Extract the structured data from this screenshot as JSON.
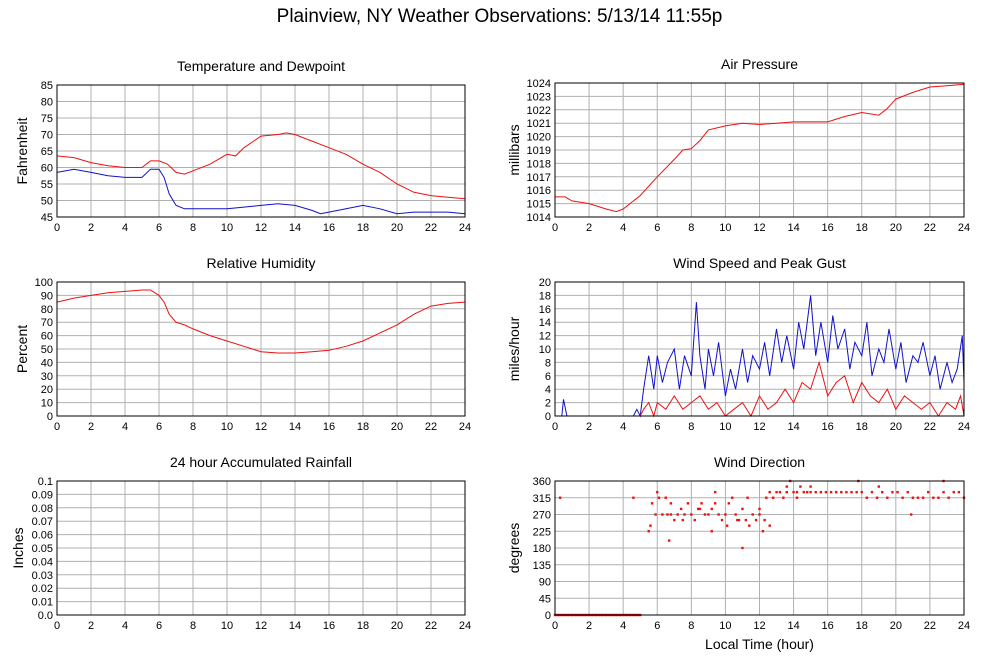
{
  "page": {
    "title": "Plainview, NY Weather Observations: 5/13/14 11:55p"
  },
  "colors": {
    "red": "#ee1111",
    "blue": "#1111cc",
    "grid": "#b0b0b0",
    "frame": "#000000"
  },
  "chart_data": [
    {
      "id": "temp",
      "type": "line",
      "title": "Temperature and Dewpoint",
      "ylabel": "Fahrenheit",
      "xlabel": "",
      "xlim": [
        0,
        24
      ],
      "ylim": [
        45,
        85
      ],
      "xticks": [
        0,
        2,
        4,
        6,
        8,
        10,
        12,
        14,
        16,
        18,
        20,
        22,
        24
      ],
      "yticks": [
        45,
        50,
        55,
        60,
        65,
        70,
        75,
        80,
        85
      ],
      "grid": true,
      "series": [
        {
          "color": "red",
          "x": [
            0,
            1,
            2,
            3,
            4,
            5,
            5.5,
            6,
            6.5,
            7,
            7.5,
            8,
            9,
            10,
            10.5,
            11,
            12,
            13,
            13.5,
            14,
            15,
            16,
            17,
            18,
            19,
            20,
            21,
            22,
            23,
            24
          ],
          "y": [
            63.5,
            63,
            61.5,
            60.5,
            60,
            60,
            62,
            62,
            61,
            58.5,
            58,
            59,
            61,
            64,
            63.5,
            66,
            69.5,
            70,
            70.5,
            70,
            68,
            66,
            64,
            61,
            58.5,
            55,
            52.5,
            51.5,
            51,
            50.5
          ]
        },
        {
          "color": "blue",
          "x": [
            0,
            1,
            2,
            3,
            4,
            5,
            5.5,
            6,
            6.3,
            6.6,
            7,
            7.5,
            8,
            9,
            10,
            11,
            12,
            13,
            14,
            15,
            15.5,
            16,
            17,
            18,
            19,
            20,
            21,
            22,
            23,
            24
          ],
          "y": [
            58.5,
            59.5,
            58.5,
            57.5,
            57,
            57,
            59.5,
            59.5,
            57,
            52,
            48.5,
            47.5,
            47.5,
            47.5,
            47.5,
            48,
            48.5,
            49,
            48.5,
            47,
            46,
            46.5,
            47.5,
            48.5,
            47.5,
            46,
            46.5,
            46.5,
            46.5,
            46
          ]
        }
      ]
    },
    {
      "id": "pressure",
      "type": "line",
      "title": "Air Pressure",
      "ylabel": "millibars",
      "xlabel": "",
      "xlim": [
        0,
        24
      ],
      "ylim": [
        1014,
        1024
      ],
      "xticks": [
        0,
        2,
        4,
        6,
        8,
        10,
        12,
        14,
        16,
        18,
        20,
        22,
        24
      ],
      "yticks": [
        1014,
        1015,
        1016,
        1017,
        1018,
        1019,
        1020,
        1021,
        1022,
        1023,
        1024
      ],
      "grid": true,
      "series": [
        {
          "color": "red",
          "x": [
            0,
            0.6,
            1,
            2,
            3,
            3.6,
            4,
            5,
            6,
            7,
            7.5,
            8,
            8.5,
            9,
            10,
            11,
            12,
            13,
            14,
            15,
            16,
            17,
            18,
            19,
            19.5,
            20,
            21,
            22,
            23,
            24
          ],
          "y": [
            1015.5,
            1015.5,
            1015.2,
            1015,
            1014.6,
            1014.4,
            1014.6,
            1015.6,
            1017,
            1018.3,
            1019,
            1019.1,
            1019.7,
            1020.5,
            1020.8,
            1021,
            1020.9,
            1021,
            1021.1,
            1021.1,
            1021.1,
            1021.5,
            1021.8,
            1021.6,
            1022.1,
            1022.8,
            1023.3,
            1023.7,
            1023.8,
            1023.9
          ]
        }
      ]
    },
    {
      "id": "humidity",
      "type": "line",
      "title": "Relative Humidity",
      "ylabel": "Percent",
      "xlabel": "",
      "xlim": [
        0,
        24
      ],
      "ylim": [
        0,
        100
      ],
      "xticks": [
        0,
        2,
        4,
        6,
        8,
        10,
        12,
        14,
        16,
        18,
        20,
        22,
        24
      ],
      "yticks": [
        0,
        10,
        20,
        30,
        40,
        50,
        60,
        70,
        80,
        90,
        100
      ],
      "grid": true,
      "series": [
        {
          "color": "red",
          "x": [
            0,
            1,
            2,
            3,
            4,
            5,
            5.5,
            6,
            6.3,
            6.6,
            7,
            7.5,
            8,
            9,
            10,
            11,
            12,
            13,
            14,
            15,
            16,
            17,
            18,
            19,
            20,
            21,
            22,
            23,
            24
          ],
          "y": [
            85,
            88,
            90,
            92,
            93,
            94,
            94,
            90,
            85,
            76,
            70,
            68,
            65,
            60,
            56,
            52,
            48,
            47,
            47,
            48,
            49,
            52,
            56,
            62,
            68,
            76,
            82,
            84,
            85
          ]
        }
      ]
    },
    {
      "id": "wind",
      "type": "line",
      "title": "Wind Speed and Peak Gust",
      "ylabel": "miles/hour",
      "xlabel": "",
      "xlim": [
        0,
        24
      ],
      "ylim": [
        0,
        20
      ],
      "xticks": [
        0,
        2,
        4,
        6,
        8,
        10,
        12,
        14,
        16,
        18,
        20,
        22,
        24
      ],
      "yticks": [
        0,
        2,
        4,
        6,
        8,
        10,
        12,
        14,
        16,
        18,
        20
      ],
      "grid": true,
      "series": [
        {
          "color": "blue",
          "x": [
            0,
            0.4,
            0.5,
            0.7,
            1,
            2,
            3,
            4,
            4.6,
            4.8,
            5,
            5.2,
            5.5,
            5.8,
            6,
            6.3,
            6.6,
            7,
            7.3,
            7.6,
            8,
            8.3,
            8.5,
            8.8,
            9,
            9.3,
            9.6,
            10,
            10.3,
            10.6,
            11,
            11.3,
            11.6,
            12,
            12.3,
            12.6,
            13,
            13.3,
            13.6,
            14,
            14.3,
            14.6,
            15,
            15.3,
            15.6,
            16,
            16.3,
            16.6,
            17,
            17.3,
            17.6,
            18,
            18.3,
            18.6,
            19,
            19.3,
            19.6,
            20,
            20.3,
            20.6,
            21,
            21.3,
            21.6,
            22,
            22.3,
            22.6,
            23,
            23.3,
            23.6,
            23.9,
            24
          ],
          "y": [
            0,
            0,
            2.5,
            0,
            0,
            0,
            0,
            0,
            0,
            1,
            0,
            4,
            9,
            4,
            9,
            5,
            8,
            10,
            4,
            9,
            6,
            17,
            9,
            4,
            10,
            6,
            11,
            3,
            7,
            4,
            10,
            5,
            9,
            7,
            11,
            6,
            13,
            8,
            12,
            7,
            14,
            10,
            18,
            9,
            14,
            8,
            15,
            10,
            13,
            7,
            11,
            9,
            14,
            6,
            10,
            8,
            13,
            7,
            11,
            5,
            9,
            8,
            11,
            6,
            9,
            4,
            8,
            5,
            7,
            12,
            5
          ]
        },
        {
          "color": "red",
          "x": [
            0,
            5,
            5.2,
            5.5,
            5.8,
            6,
            6.5,
            7,
            7.5,
            8,
            8.5,
            9,
            9.5,
            10,
            10.5,
            11,
            11.5,
            12,
            12.5,
            13,
            13.5,
            14,
            14.5,
            15,
            15.5,
            16,
            16.5,
            17,
            17.5,
            18,
            18.5,
            19,
            19.5,
            20,
            20.5,
            21,
            21.5,
            22,
            22.5,
            23,
            23.5,
            23.8,
            24
          ],
          "y": [
            0,
            0,
            1,
            2,
            0,
            2,
            1,
            3,
            1,
            2,
            3,
            1,
            2,
            0,
            1,
            2,
            0,
            3,
            1,
            2,
            4,
            2,
            5,
            4,
            8,
            3,
            5,
            6,
            2,
            5,
            3,
            2,
            4,
            1,
            3,
            2,
            1,
            2,
            0,
            2,
            1,
            3,
            0
          ]
        }
      ]
    },
    {
      "id": "rain",
      "type": "line",
      "title": "24 hour Accumulated Rainfall",
      "ylabel": "Inches",
      "xlabel": "",
      "xlim": [
        0,
        24
      ],
      "ylim": [
        0,
        0.1
      ],
      "xticks": [
        0,
        2,
        4,
        6,
        8,
        10,
        12,
        14,
        16,
        18,
        20,
        22,
        24
      ],
      "yticks": [
        "0.0",
        "0.01",
        "0.02",
        "0.03",
        "0.04",
        "0.05",
        "0.06",
        "0.07",
        "0.08",
        "0.09",
        "0.1"
      ],
      "grid": true,
      "series": [
        {
          "color": "red",
          "x": [
            0,
            24
          ],
          "y": [
            0,
            0
          ]
        }
      ]
    },
    {
      "id": "direction",
      "type": "scatter",
      "title": "Wind Direction",
      "ylabel": "degrees",
      "xlabel": "Local Time (hour)",
      "xlim": [
        0,
        24
      ],
      "ylim": [
        0,
        360
      ],
      "xticks": [
        0,
        2,
        4,
        6,
        8,
        10,
        12,
        14,
        16,
        18,
        20,
        22,
        24
      ],
      "yticks": [
        0,
        45,
        90,
        135,
        180,
        225,
        270,
        315,
        360
      ],
      "grid": true,
      "series": [
        {
          "color": "red",
          "x": [
            0.3,
            4.6,
            5.5,
            5.7,
            5.9,
            6.1,
            6.3,
            6.5,
            6.6,
            6.8,
            7.0,
            7.2,
            7.4,
            7.6,
            7.8,
            8.0,
            8.2,
            8.4,
            8.6,
            8.8,
            9.0,
            9.2,
            9.4,
            9.6,
            9.8,
            10.0,
            10.2,
            10.4,
            10.6,
            10.8,
            11.0,
            11.2,
            11.4,
            11.6,
            11.8,
            12.0,
            12.2,
            12.4,
            12.6,
            12.8,
            13.0,
            13.2,
            13.4,
            13.6,
            13.8,
            14.0,
            14.2,
            14.4,
            14.6,
            14.8,
            15.0,
            15.3,
            15.6,
            15.9,
            16.2,
            16.5,
            16.8,
            17.1,
            17.4,
            17.7,
            18.0,
            18.3,
            18.6,
            18.9,
            19.2,
            19.5,
            19.8,
            20.1,
            20.4,
            20.7,
            21.0,
            21.3,
            21.6,
            21.9,
            22.2,
            22.5,
            22.8,
            23.1,
            23.4,
            23.7,
            24.0,
            5.6,
            6.0,
            6.7,
            7.5,
            8.5,
            9.2,
            10.1,
            10.7,
            11.3,
            12.0,
            12.6,
            13.6,
            14.2,
            15.0,
            17.8,
            19.0,
            20.9,
            22.8,
            11.0,
            6.8,
            9.4,
            12.3
          ],
          "y": [
            315,
            315,
            225,
            300,
            270,
            315,
            270,
            315,
            270,
            270,
            255,
            270,
            285,
            270,
            300,
            270,
            255,
            285,
            300,
            270,
            270,
            285,
            300,
            270,
            255,
            270,
            300,
            315,
            270,
            255,
            285,
            255,
            240,
            270,
            255,
            270,
            225,
            315,
            330,
            315,
            330,
            330,
            315,
            330,
            360,
            330,
            330,
            345,
            330,
            330,
            330,
            330,
            330,
            330,
            330,
            330,
            330,
            330,
            330,
            330,
            330,
            315,
            330,
            315,
            330,
            315,
            330,
            330,
            315,
            330,
            315,
            315,
            315,
            330,
            315,
            315,
            330,
            315,
            330,
            330,
            315,
            240,
            330,
            200,
            255,
            285,
            225,
            240,
            255,
            315,
            285,
            240,
            345,
            315,
            345,
            360,
            345,
            270,
            360,
            180,
            300,
            330,
            255
          ]
        },
        {
          "color": "red",
          "x": [
            0.0,
            0.2,
            0.4,
            0.6,
            0.8,
            1.0,
            1.2,
            1.4,
            1.6,
            1.8,
            2.0,
            2.2,
            2.4,
            2.6,
            2.8,
            3.0,
            3.2,
            3.4,
            3.6,
            3.8,
            4.0,
            4.2,
            4.4,
            4.6,
            4.8,
            5.0
          ],
          "y": [
            0,
            0,
            0,
            0,
            0,
            0,
            0,
            0,
            0,
            0,
            0,
            0,
            0,
            0,
            0,
            0,
            0,
            0,
            0,
            0,
            0,
            0,
            0,
            0,
            0,
            0
          ]
        }
      ]
    }
  ]
}
